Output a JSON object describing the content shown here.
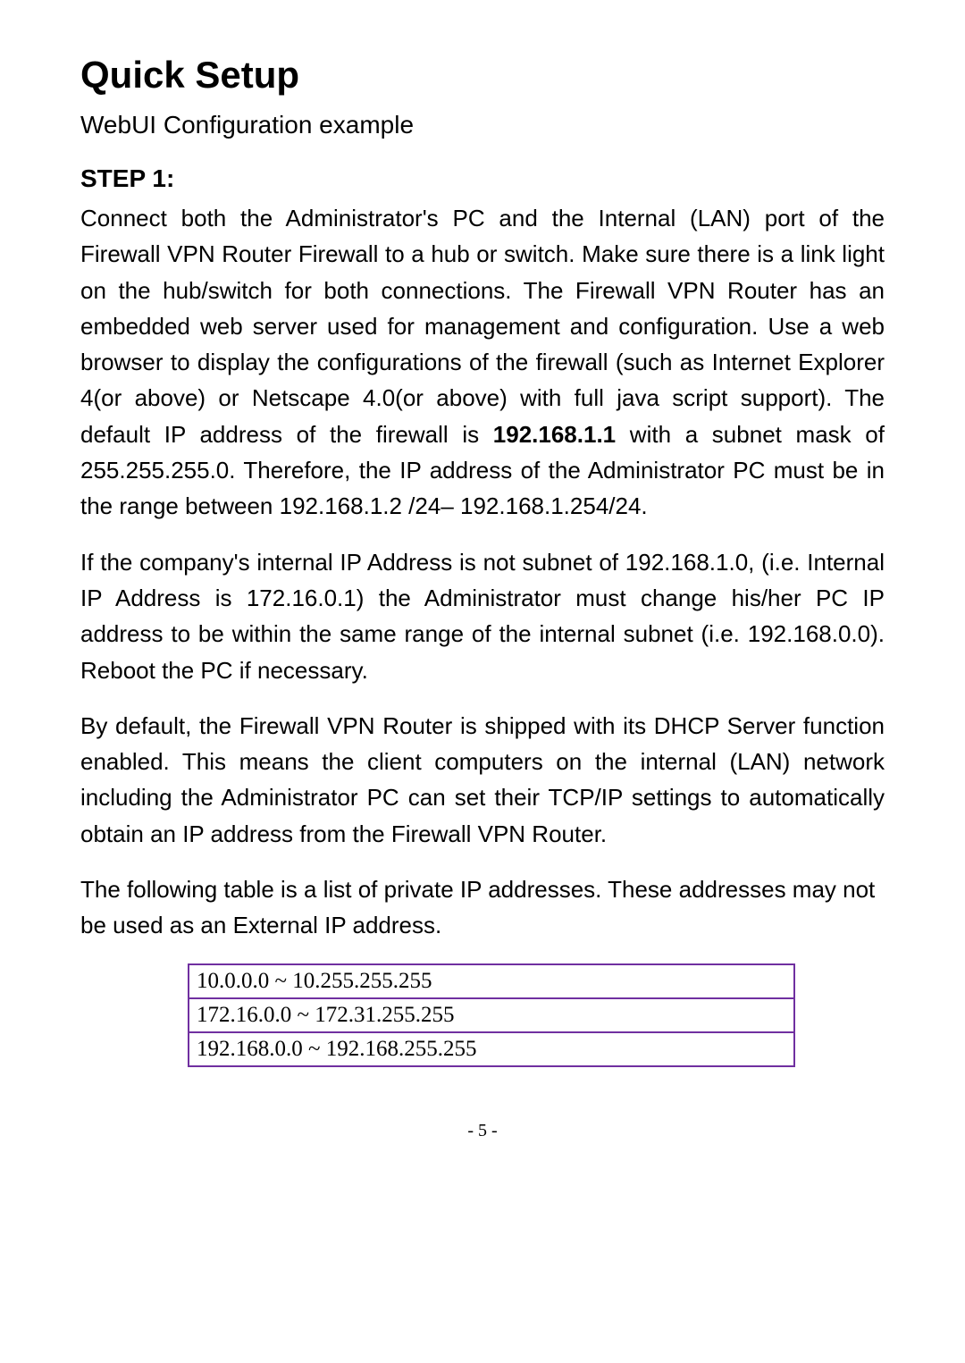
{
  "title": "Quick Setup",
  "subtitle": "WebUI Configuration example",
  "step_heading": "STEP 1:",
  "para1_a": "Connect both the Administrator's PC and the Internal (LAN) port of the Firewall VPN Router Firewall to a hub or switch. Make sure there is a link light on the hub/switch for both connections. The Firewall VPN Router has an embedded web server used for management and configuration. Use a web browser to display the configurations of the firewall (such as Internet Explorer 4(or above) or Netscape 4.0(or above) with full java script support). The default IP address of the firewall is ",
  "para1_bold": "192.168.1.1",
  "para1_b": " with a subnet mask of 255.255.255.0. Therefore, the IP address of the Administrator PC must be in the range between 192.168.1.2 /24– 192.168.1.254/24.",
  "para2": "If the company's internal IP Address is not subnet of 192.168.1.0, (i.e. Internal IP Address is 172.16.0.1) the Administrator must change his/her PC IP address to be within the same range of the internal subnet (i.e. 192.168.0.0).  Reboot the PC if necessary.",
  "para3": "By default, the Firewall VPN Router is shipped with its DHCP Server function enabled. This means the client computers on the internal (LAN) network including the Administrator PC can set their TCP/IP settings to automatically obtain an IP address from the Firewall VPN Router.",
  "para4": "The following table is a list of private IP addresses.  These addresses may not be used as an External IP address.",
  "table": {
    "border_color": "#7030a0",
    "rows": [
      "10.0.0.0 ~ 10.255.255.255",
      "172.16.0.0 ~ 172.31.255.255",
      "192.168.0.0 ~ 192.168.255.255"
    ]
  },
  "page_number": "- 5 -"
}
